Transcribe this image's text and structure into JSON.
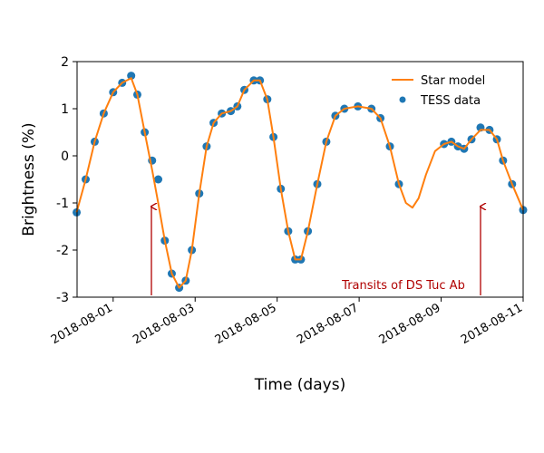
{
  "chart_data": {
    "type": "line",
    "xlabel": "Time (days)",
    "ylabel": "Brightness (%)",
    "annotation": "Transits of DS Tuc Ab",
    "xlim": [
      -0.88,
      10
    ],
    "ylim": [
      -3,
      2
    ],
    "xticks": [
      {
        "value": 0,
        "label": "2018-08-01"
      },
      {
        "value": 2,
        "label": "2018-08-03"
      },
      {
        "value": 4,
        "label": "2018-08-05"
      },
      {
        "value": 6,
        "label": "2018-08-07"
      },
      {
        "value": 8,
        "label": "2018-08-09"
      },
      {
        "value": 10,
        "label": "2018-08-11"
      }
    ],
    "yticks": [
      -3,
      -2,
      -1,
      0,
      1,
      2
    ],
    "legend": "upper right",
    "series": [
      {
        "name": "TESS data",
        "type": "scatter",
        "color": "#1f77b4",
        "x": [
          -0.89,
          -0.67,
          -0.45,
          -0.23,
          0.0,
          0.22,
          0.44,
          0.59,
          0.77,
          0.95,
          1.1,
          1.26,
          1.43,
          1.61,
          1.77,
          1.92,
          2.1,
          2.28,
          2.45,
          2.65,
          2.87,
          3.03,
          3.2,
          3.43,
          3.58,
          3.76,
          3.91,
          4.09,
          4.27,
          4.44,
          4.58,
          4.75,
          4.98,
          5.2,
          5.42,
          5.64,
          5.97,
          6.3,
          6.52,
          6.75,
          6.97,
          8.07,
          8.25,
          8.41,
          8.56,
          8.74,
          8.96,
          9.18,
          9.36,
          9.51,
          9.73,
          10.0
        ],
        "values": [
          -1.2,
          -0.5,
          0.3,
          0.9,
          1.35,
          1.55,
          1.7,
          1.3,
          0.5,
          -0.1,
          -0.5,
          -1.8,
          -2.5,
          -2.8,
          -2.65,
          -2.0,
          -0.8,
          0.2,
          0.7,
          0.9,
          0.95,
          1.05,
          1.4,
          1.6,
          1.6,
          1.2,
          0.4,
          -0.7,
          -1.6,
          -2.2,
          -2.2,
          -1.6,
          -0.6,
          0.3,
          0.85,
          1.0,
          1.05,
          1.0,
          0.8,
          0.2,
          -0.6,
          0.25,
          0.3,
          0.2,
          0.15,
          0.35,
          0.6,
          0.55,
          0.35,
          -0.1,
          -0.6,
          -1.15
        ]
      },
      {
        "name": "Star model",
        "type": "line",
        "color": "#ff7f0e",
        "x": [
          -0.89,
          -0.67,
          -0.45,
          -0.23,
          0.0,
          0.22,
          0.44,
          0.59,
          0.77,
          0.95,
          1.1,
          1.26,
          1.43,
          1.61,
          1.77,
          1.92,
          2.1,
          2.28,
          2.45,
          2.65,
          2.87,
          3.03,
          3.2,
          3.43,
          3.58,
          3.76,
          3.91,
          4.09,
          4.27,
          4.44,
          4.58,
          4.75,
          4.98,
          5.2,
          5.42,
          5.64,
          5.97,
          6.3,
          6.52,
          6.75,
          6.97,
          7.14,
          7.3,
          7.45,
          7.63,
          7.85,
          8.07,
          8.25,
          8.41,
          8.56,
          8.74,
          8.96,
          9.18,
          9.36,
          9.51,
          9.73,
          10.0
        ],
        "values": [
          -1.2,
          -0.5,
          0.3,
          0.9,
          1.35,
          1.55,
          1.65,
          1.3,
          0.5,
          -0.3,
          -1.0,
          -1.8,
          -2.5,
          -2.8,
          -2.65,
          -2.0,
          -0.8,
          0.2,
          0.7,
          0.9,
          0.95,
          1.05,
          1.4,
          1.6,
          1.6,
          1.2,
          0.4,
          -0.7,
          -1.6,
          -2.2,
          -2.2,
          -1.6,
          -0.6,
          0.3,
          0.85,
          1.0,
          1.05,
          1.0,
          0.8,
          0.2,
          -0.6,
          -1.0,
          -1.1,
          -0.9,
          -0.4,
          0.1,
          0.25,
          0.3,
          0.2,
          0.15,
          0.35,
          0.55,
          0.55,
          0.35,
          -0.1,
          -0.6,
          -1.15
        ]
      }
    ]
  }
}
